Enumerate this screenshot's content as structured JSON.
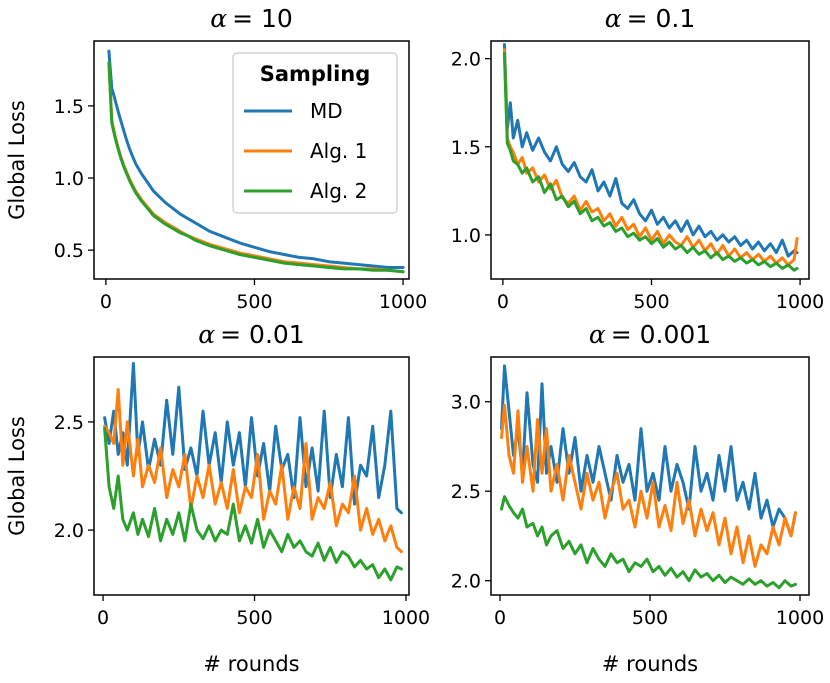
{
  "figure": {
    "colors": {
      "MD": "#1f77b4",
      "Alg. 1": "#ff7f0e",
      "Alg. 2": "#2ca02c"
    },
    "legend": {
      "title": "Sampling",
      "entries": [
        "MD",
        "Alg. 1",
        "Alg. 2"
      ],
      "placement": "upper-right of first panel"
    }
  },
  "chart_data": [
    {
      "type": "line",
      "title_prefix": "α",
      "title_value": "= 10",
      "xlabel": "",
      "ylabel": "Global Loss",
      "xlim": [
        -40,
        1020
      ],
      "ylim": [
        0.3,
        1.95
      ],
      "xticks": [
        0,
        500,
        1000
      ],
      "xtick_labels": [
        "0",
        "500",
        "1000"
      ],
      "yticks": [
        0.5,
        1.0,
        1.5
      ],
      "ytick_labels": [
        "0.5",
        "1.0",
        "1.5"
      ],
      "x": [
        10,
        20,
        30,
        40,
        50,
        60,
        70,
        80,
        90,
        100,
        120,
        140,
        160,
        180,
        200,
        225,
        250,
        275,
        300,
        350,
        400,
        450,
        500,
        550,
        600,
        650,
        700,
        750,
        800,
        850,
        900,
        950,
        1000
      ],
      "series": [
        {
          "name": "MD",
          "values": [
            1.88,
            1.62,
            1.55,
            1.47,
            1.4,
            1.33,
            1.26,
            1.2,
            1.15,
            1.1,
            1.03,
            0.97,
            0.91,
            0.87,
            0.83,
            0.79,
            0.75,
            0.72,
            0.69,
            0.63,
            0.59,
            0.55,
            0.52,
            0.49,
            0.47,
            0.45,
            0.44,
            0.42,
            0.41,
            0.4,
            0.39,
            0.38,
            0.38
          ]
        },
        {
          "name": "Alg. 1",
          "values": [
            1.8,
            1.4,
            1.3,
            1.22,
            1.15,
            1.09,
            1.04,
            0.99,
            0.95,
            0.91,
            0.85,
            0.8,
            0.75,
            0.72,
            0.69,
            0.66,
            0.63,
            0.6,
            0.58,
            0.54,
            0.51,
            0.48,
            0.46,
            0.44,
            0.42,
            0.41,
            0.4,
            0.39,
            0.38,
            0.37,
            0.37,
            0.36,
            0.35
          ]
        },
        {
          "name": "Alg. 2",
          "values": [
            1.8,
            1.38,
            1.29,
            1.21,
            1.14,
            1.08,
            1.03,
            0.98,
            0.94,
            0.9,
            0.84,
            0.79,
            0.74,
            0.71,
            0.68,
            0.65,
            0.62,
            0.6,
            0.57,
            0.53,
            0.5,
            0.47,
            0.45,
            0.43,
            0.41,
            0.4,
            0.39,
            0.38,
            0.37,
            0.37,
            0.36,
            0.36,
            0.35
          ]
        }
      ]
    },
    {
      "type": "line",
      "title_prefix": "α",
      "title_value": "= 0.1",
      "xlabel": "",
      "ylabel": "",
      "xlim": [
        -40,
        1030
      ],
      "ylim": [
        0.75,
        2.1
      ],
      "xticks": [
        0,
        500,
        1000
      ],
      "xtick_labels": [
        "0",
        "500",
        "1000"
      ],
      "yticks": [
        1.0,
        1.5,
        2.0
      ],
      "ytick_labels": [
        "1.0",
        "1.5",
        "2.0"
      ],
      "x": [
        5,
        15,
        25,
        35,
        50,
        65,
        80,
        100,
        120,
        140,
        160,
        180,
        200,
        220,
        240,
        260,
        280,
        300,
        320,
        340,
        360,
        380,
        400,
        420,
        440,
        460,
        480,
        500,
        520,
        540,
        560,
        580,
        600,
        620,
        640,
        660,
        680,
        700,
        720,
        740,
        760,
        780,
        800,
        820,
        840,
        860,
        880,
        900,
        920,
        940,
        960,
        980,
        990
      ],
      "series": [
        {
          "name": "MD",
          "values": [
            2.08,
            1.6,
            1.75,
            1.55,
            1.65,
            1.5,
            1.58,
            1.48,
            1.55,
            1.47,
            1.42,
            1.5,
            1.4,
            1.36,
            1.41,
            1.33,
            1.3,
            1.37,
            1.25,
            1.3,
            1.22,
            1.32,
            1.18,
            1.15,
            1.2,
            1.12,
            1.08,
            1.14,
            1.06,
            1.1,
            1.04,
            1.08,
            1.02,
            1.08,
            1.0,
            1.05,
            0.99,
            1.02,
            0.97,
            1.0,
            0.96,
            0.99,
            0.94,
            0.97,
            0.92,
            0.96,
            0.91,
            0.95,
            0.9,
            0.97,
            0.88,
            0.91,
            0.9
          ]
        },
        {
          "name": "Alg. 1",
          "values": [
            2.05,
            1.55,
            1.5,
            1.47,
            1.4,
            1.44,
            1.35,
            1.38,
            1.3,
            1.34,
            1.26,
            1.31,
            1.21,
            1.18,
            1.22,
            1.14,
            1.19,
            1.13,
            1.15,
            1.08,
            1.12,
            1.05,
            1.1,
            1.03,
            1.06,
            0.99,
            1.04,
            0.97,
            1.02,
            0.95,
            1.0,
            0.96,
            0.94,
            0.99,
            0.93,
            0.97,
            0.91,
            0.95,
            0.89,
            0.94,
            0.88,
            0.92,
            0.87,
            0.9,
            0.86,
            0.89,
            0.85,
            0.88,
            0.84,
            0.87,
            0.83,
            0.86,
            0.98
          ]
        },
        {
          "name": "Alg. 2",
          "values": [
            2.03,
            1.52,
            1.48,
            1.42,
            1.4,
            1.35,
            1.38,
            1.3,
            1.33,
            1.24,
            1.29,
            1.2,
            1.22,
            1.16,
            1.19,
            1.12,
            1.15,
            1.08,
            1.1,
            1.05,
            1.07,
            1.02,
            1.04,
            0.99,
            1.01,
            0.97,
            0.99,
            0.95,
            0.98,
            0.93,
            0.96,
            0.92,
            0.94,
            0.9,
            0.93,
            0.89,
            0.91,
            0.87,
            0.9,
            0.86,
            0.88,
            0.85,
            0.87,
            0.84,
            0.86,
            0.83,
            0.85,
            0.82,
            0.84,
            0.81,
            0.83,
            0.8,
            0.81
          ]
        }
      ]
    },
    {
      "type": "line",
      "title_prefix": "α",
      "title_value": "= 0.01",
      "xlabel": "# rounds",
      "ylabel": "Global Loss",
      "xlim": [
        -30,
        1010
      ],
      "ylim": [
        1.7,
        2.8
      ],
      "xticks": [
        0,
        500,
        1000
      ],
      "xtick_labels": [
        "0",
        "500",
        "1000"
      ],
      "yticks": [
        2.0,
        2.5
      ],
      "ytick_labels": [
        "2.0",
        "2.5"
      ],
      "x": [
        5,
        20,
        35,
        50,
        65,
        80,
        100,
        115,
        130,
        150,
        170,
        190,
        210,
        230,
        250,
        270,
        290,
        310,
        330,
        350,
        370,
        390,
        410,
        430,
        450,
        470,
        490,
        510,
        530,
        550,
        570,
        590,
        610,
        630,
        650,
        670,
        690,
        710,
        730,
        750,
        770,
        790,
        810,
        830,
        850,
        870,
        890,
        910,
        930,
        950,
        970,
        985
      ],
      "series": [
        {
          "name": "MD",
          "values": [
            2.52,
            2.4,
            2.55,
            2.35,
            2.45,
            2.3,
            2.77,
            2.35,
            2.5,
            2.28,
            2.42,
            2.3,
            2.6,
            2.35,
            2.66,
            2.28,
            2.38,
            2.25,
            2.55,
            2.3,
            2.45,
            2.22,
            2.5,
            2.3,
            2.45,
            2.2,
            2.52,
            2.25,
            2.4,
            2.18,
            2.48,
            2.28,
            2.35,
            2.15,
            2.52,
            2.2,
            2.38,
            2.18,
            2.55,
            2.15,
            2.35,
            2.2,
            2.52,
            2.12,
            2.3,
            2.25,
            2.48,
            2.15,
            2.3,
            2.55,
            2.1,
            2.08
          ]
        },
        {
          "name": "Alg. 1",
          "values": [
            2.48,
            2.45,
            2.4,
            2.65,
            2.3,
            2.5,
            2.25,
            2.42,
            2.2,
            2.3,
            2.22,
            2.38,
            2.15,
            2.28,
            2.2,
            2.35,
            2.1,
            2.25,
            2.15,
            2.3,
            2.12,
            2.22,
            2.1,
            2.28,
            2.08,
            2.2,
            2.15,
            2.35,
            2.05,
            2.18,
            2.12,
            2.3,
            2.05,
            2.2,
            2.1,
            2.4,
            2.05,
            2.15,
            2.1,
            2.22,
            2.02,
            2.12,
            2.08,
            2.25,
            2.0,
            2.1,
            1.98,
            2.05,
            1.95,
            2.02,
            1.92,
            1.9
          ]
        },
        {
          "name": "Alg. 2",
          "values": [
            2.47,
            2.2,
            2.1,
            2.25,
            2.05,
            2.0,
            2.08,
            1.98,
            2.05,
            1.97,
            2.1,
            1.95,
            2.05,
            1.98,
            2.08,
            1.95,
            2.12,
            2.0,
            1.96,
            2.02,
            1.95,
            2.0,
            1.98,
            2.12,
            1.95,
            2.02,
            1.94,
            2.05,
            1.92,
            2.0,
            1.95,
            1.9,
            1.98,
            1.92,
            1.95,
            1.9,
            1.88,
            1.94,
            1.86,
            1.92,
            1.85,
            1.9,
            1.88,
            1.83,
            1.86,
            1.82,
            1.84,
            1.78,
            1.82,
            1.77,
            1.83,
            1.82
          ]
        }
      ]
    },
    {
      "type": "line",
      "title_prefix": "α",
      "title_value": "= 0.001",
      "xlabel": "# rounds",
      "ylabel": "",
      "xlim": [
        -30,
        1030
      ],
      "ylim": [
        1.92,
        3.25
      ],
      "xticks": [
        0,
        500,
        1000
      ],
      "xtick_labels": [
        "0",
        "500",
        "1000"
      ],
      "yticks": [
        2.0,
        2.5,
        3.0
      ],
      "ytick_labels": [
        "2.0",
        "2.5",
        "3.0"
      ],
      "x": [
        5,
        15,
        30,
        45,
        60,
        75,
        90,
        110,
        125,
        140,
        155,
        170,
        190,
        210,
        230,
        250,
        270,
        290,
        310,
        330,
        350,
        370,
        390,
        410,
        430,
        450,
        470,
        490,
        510,
        530,
        550,
        570,
        590,
        610,
        630,
        650,
        670,
        690,
        710,
        730,
        750,
        770,
        790,
        810,
        830,
        850,
        870,
        890,
        910,
        930,
        950,
        970,
        985
      ],
      "series": [
        {
          "name": "MD",
          "values": [
            2.85,
            3.2,
            2.95,
            2.7,
            2.85,
            2.6,
            3.05,
            2.65,
            2.55,
            3.1,
            2.6,
            2.75,
            2.55,
            2.85,
            2.6,
            2.8,
            2.5,
            2.7,
            2.55,
            2.75,
            2.6,
            2.45,
            2.7,
            2.55,
            2.65,
            2.45,
            2.85,
            2.5,
            2.6,
            2.45,
            2.75,
            2.5,
            2.65,
            2.55,
            2.4,
            2.75,
            2.5,
            2.6,
            2.45,
            2.7,
            2.5,
            2.75,
            2.45,
            2.55,
            2.4,
            2.6,
            2.35,
            2.45,
            2.3,
            2.4,
            2.35,
            2.25,
            2.38
          ]
        },
        {
          "name": "Alg. 1",
          "values": [
            2.8,
            2.98,
            2.7,
            2.6,
            2.95,
            2.55,
            2.75,
            2.5,
            2.9,
            2.6,
            2.85,
            2.5,
            2.65,
            2.45,
            2.7,
            2.55,
            2.4,
            2.6,
            2.45,
            2.55,
            2.35,
            2.5,
            2.6,
            2.4,
            2.45,
            2.3,
            2.5,
            2.35,
            2.55,
            2.3,
            2.42,
            2.28,
            2.55,
            2.32,
            2.45,
            2.25,
            2.4,
            2.28,
            2.38,
            2.2,
            2.35,
            2.15,
            2.3,
            2.1,
            2.25,
            2.08,
            2.2,
            2.15,
            2.3,
            2.2,
            2.35,
            2.25,
            2.38
          ]
        },
        {
          "name": "Alg. 2",
          "values": [
            2.4,
            2.47,
            2.42,
            2.38,
            2.35,
            2.4,
            2.3,
            2.32,
            2.25,
            2.3,
            2.2,
            2.25,
            2.28,
            2.18,
            2.22,
            2.15,
            2.2,
            2.1,
            2.18,
            2.12,
            2.08,
            2.15,
            2.1,
            2.12,
            2.05,
            2.1,
            2.08,
            2.12,
            2.05,
            2.08,
            2.03,
            2.07,
            2.02,
            2.05,
            2.0,
            2.06,
            2.02,
            2.04,
            2.0,
            2.03,
            1.99,
            2.02,
            2.0,
            1.98,
            2.01,
            1.98,
            2.0,
            1.97,
            1.99,
            1.96,
            2.0,
            1.97,
            1.98
          ]
        }
      ]
    }
  ]
}
